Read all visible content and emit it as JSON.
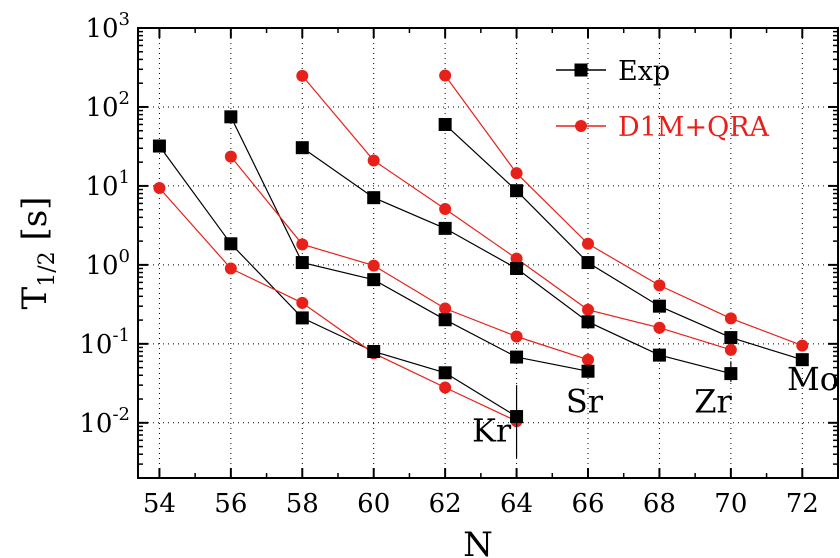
{
  "chart_data": {
    "type": "line",
    "title": "",
    "xlabel": "N",
    "ylabel": {
      "main": "T",
      "subscript": "1/2",
      "unit": " [s]"
    },
    "xlim": [
      53.4,
      73
    ],
    "ylim": [
      0.002,
      1000
    ],
    "yscale": "log",
    "x_ticks": [
      "54",
      "56",
      "58",
      "60",
      "62",
      "64",
      "66",
      "68",
      "70",
      "72"
    ],
    "y_ticks": [
      {
        "base": "10",
        "exp": "-2",
        "value": 0.01
      },
      {
        "base": "10",
        "exp": "-1",
        "value": 0.1
      },
      {
        "base": "10",
        "exp": "0",
        "value": 1
      },
      {
        "base": "10",
        "exp": "1",
        "value": 10
      },
      {
        "base": "10",
        "exp": "2",
        "value": 100
      },
      {
        "base": "10",
        "exp": "3",
        "value": 1000
      }
    ],
    "legend": {
      "placement": "top-right",
      "entries": [
        {
          "label": "Exp",
          "color": "#000000",
          "marker": "square"
        },
        {
          "label": "D1M+QRA",
          "color": "#e8201a",
          "marker": "circle"
        }
      ]
    },
    "groups": [
      {
        "name": "Kr",
        "exp": {
          "x": [
            54,
            56,
            58,
            60,
            62,
            64
          ],
          "y": [
            32,
            1.85,
            0.213,
            0.08,
            0.043,
            0.012
          ]
        },
        "theory": {
          "x": [
            54,
            56,
            58,
            60,
            62,
            64
          ],
          "y": [
            9.4,
            0.9,
            0.33,
            0.076,
            0.028,
            0.0105
          ]
        }
      },
      {
        "name": "Sr",
        "exp": {
          "x": [
            56,
            58,
            60,
            62,
            64,
            66
          ],
          "y": [
            75,
            1.07,
            0.65,
            0.202,
            0.068,
            0.045
          ]
        },
        "theory": {
          "x": [
            56,
            58,
            60,
            62,
            64,
            66
          ],
          "y": [
            23.5,
            1.82,
            0.98,
            0.28,
            0.124,
            0.063
          ]
        }
      },
      {
        "name": "Zr",
        "exp": {
          "x": [
            58,
            60,
            62,
            64,
            66,
            68,
            70
          ],
          "y": [
            30.5,
            7.1,
            2.9,
            0.9,
            0.19,
            0.072,
            0.042
          ]
        },
        "theory": {
          "x": [
            58,
            60,
            62,
            64,
            66,
            68,
            70
          ],
          "y": [
            248,
            21,
            5.1,
            1.2,
            0.27,
            0.16,
            0.084
          ]
        }
      },
      {
        "name": "Mo",
        "exp": {
          "x": [
            62,
            64,
            66,
            68,
            70,
            72
          ],
          "y": [
            60,
            8.7,
            1.07,
            0.3,
            0.12,
            0.063
          ]
        },
        "theory": {
          "x": [
            62,
            64,
            66,
            68,
            70,
            72
          ],
          "y": [
            250,
            14.5,
            1.85,
            0.55,
            0.21,
            0.095
          ]
        }
      }
    ],
    "group_labels": [
      {
        "text": "Kr",
        "x": 63.3,
        "y": 0.0058
      },
      {
        "text": "Sr",
        "x": 65.9,
        "y": 0.0135
      },
      {
        "text": "Zr",
        "x": 69.5,
        "y": 0.0135
      },
      {
        "text": "Mo",
        "x": 72.3,
        "y": 0.026
      }
    ],
    "error_bars": [
      {
        "x": 64,
        "y_low": 0.0036,
        "y_high": 0.03,
        "color": "#000000"
      },
      {
        "x": 70,
        "y_low": 0.033,
        "y_high": 0.06,
        "color": "#000000"
      }
    ]
  }
}
